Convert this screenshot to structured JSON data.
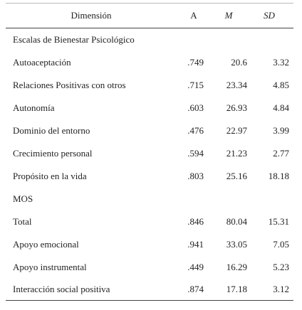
{
  "table": {
    "header": [
      "Dimensión",
      "A",
      "M",
      "SD"
    ],
    "rows": [
      [
        "Escalas de Bienestar Psicológico"
      ],
      [
        "Autoaceptación",
        ".749",
        "20.6",
        "3.32"
      ],
      [
        "Relaciones Positivas con otros",
        ".715",
        "23.34",
        "4.85"
      ],
      [
        "Autonomía",
        ".603",
        "26.93",
        "4.84"
      ],
      [
        "Dominio del entorno",
        ".476",
        "22.97",
        "3.99"
      ],
      [
        "Crecimiento personal",
        ".594",
        "21.23",
        "2.77"
      ],
      [
        "Propósito en la vida",
        ".803",
        "25.16",
        "18.18"
      ],
      [
        "MOS"
      ],
      [
        "Total",
        ".846",
        "80.04",
        "15.31"
      ],
      [
        "Apoyo emocional",
        ".941",
        "33.05",
        "7.05"
      ],
      [
        "Apoyo instrumental",
        ".449",
        "16.29",
        "5.23"
      ],
      [
        "Interacción social positiva",
        ".874",
        "17.18",
        "3.12"
      ]
    ]
  }
}
